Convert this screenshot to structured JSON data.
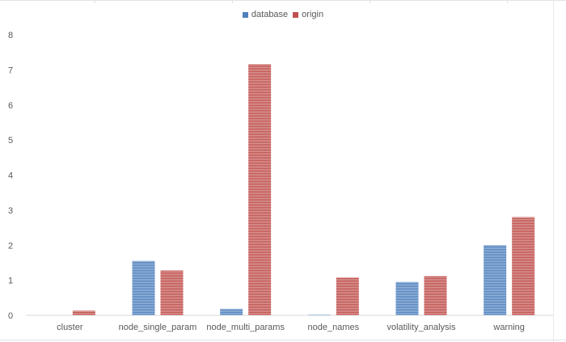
{
  "chart_data": {
    "type": "bar",
    "categories": [
      "cluster",
      "node_single_param",
      "node_multi_params",
      "node_names",
      "volatility_analysis",
      "warning"
    ],
    "series": [
      {
        "name": "database",
        "color": "#4f81bd",
        "values": [
          0,
          1.55,
          0.18,
          0.02,
          0.95,
          2.0
        ]
      },
      {
        "name": "origin",
        "color": "#c0504d",
        "values": [
          0.13,
          1.28,
          7.16,
          1.08,
          1.12,
          2.8
        ]
      }
    ],
    "yticks": [
      "0",
      "1",
      "2",
      "3",
      "4",
      "5",
      "6",
      "7",
      "8"
    ],
    "ylim": [
      0,
      8
    ],
    "legend_position": "top-center",
    "grid": false
  }
}
